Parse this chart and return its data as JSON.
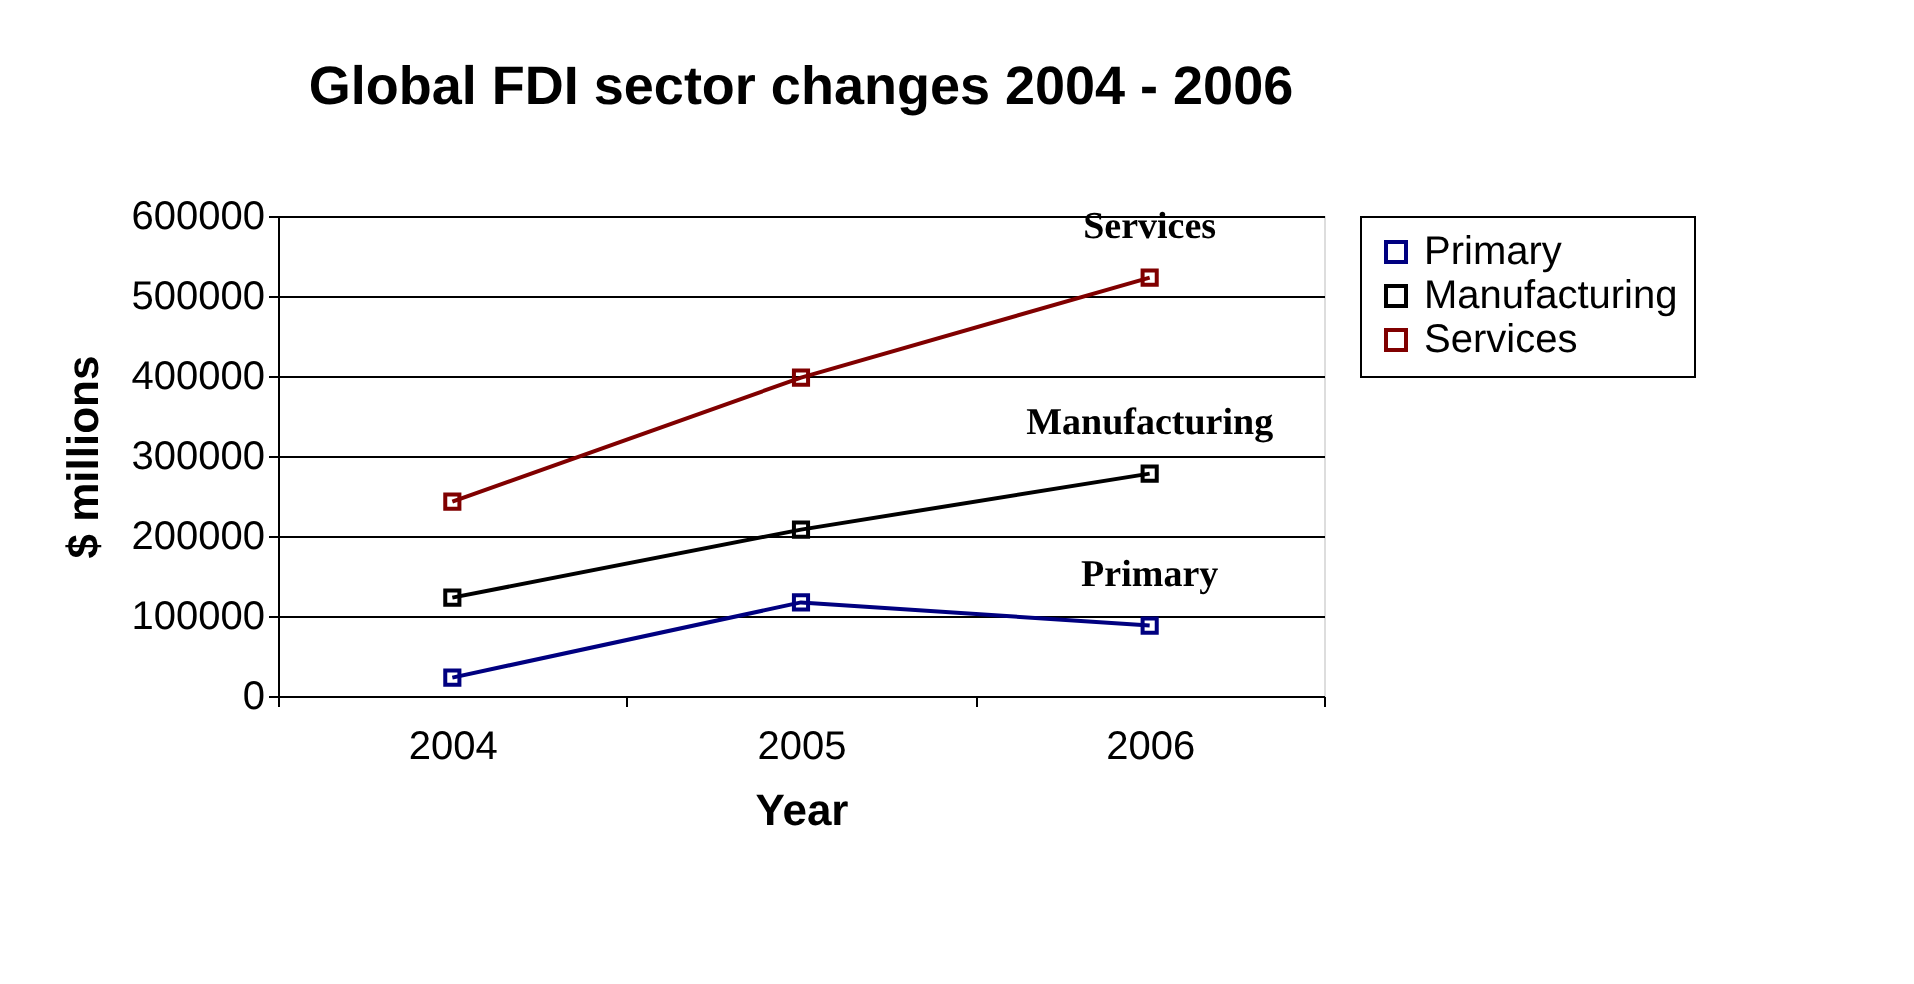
{
  "chart_data": {
    "type": "line",
    "title": "Global FDI sector changes 2004 - 2006",
    "xlabel": "Year",
    "ylabel": "$ millions",
    "categories": [
      "2004",
      "2005",
      "2006"
    ],
    "series": [
      {
        "name": "Primary",
        "color": "#000080",
        "values": [
          23000,
          117000,
          88000
        ]
      },
      {
        "name": "Manufacturing",
        "color": "#000000",
        "values": [
          123000,
          208000,
          278000
        ]
      },
      {
        "name": "Services",
        "color": "#800000",
        "values": [
          243000,
          398000,
          523000
        ]
      }
    ],
    "ylim": [
      0,
      600000
    ],
    "yticks": [
      0,
      100000,
      200000,
      300000,
      400000,
      500000,
      600000
    ],
    "grid": "y",
    "legend": "right",
    "marker": "square",
    "line_style": "solid"
  }
}
